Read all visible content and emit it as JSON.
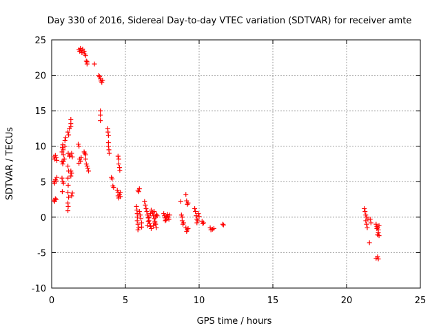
{
  "chart_data": {
    "type": "scatter",
    "title": "Day 330 of 2016, Sidereal Day-to-day VTEC variation (SDTVAR) for receiver amte",
    "xlabel": "GPS time / hours",
    "ylabel": "SDTVAR / TECUs",
    "xlim": [
      0,
      25
    ],
    "ylim": [
      -10,
      25
    ],
    "xticks": [
      0,
      5,
      10,
      15,
      20,
      25
    ],
    "yticks": [
      -10,
      -5,
      0,
      5,
      10,
      15,
      20,
      25
    ],
    "xtick_labels": [
      "0",
      "5",
      "10",
      "15",
      "20",
      "25"
    ],
    "ytick_labels": [
      "-10",
      "-5",
      "0",
      "5",
      "10",
      "15",
      "20",
      "25"
    ],
    "grid": true,
    "marker": "+",
    "color": "#ff0000",
    "series": [
      {
        "name": "SDTVAR",
        "points": [
          [
            0.15,
            8.5
          ],
          [
            0.2,
            8.2
          ],
          [
            0.25,
            8.7
          ],
          [
            0.3,
            8.4
          ],
          [
            0.35,
            8.0
          ],
          [
            0.15,
            5.0
          ],
          [
            0.2,
            4.8
          ],
          [
            0.25,
            5.3
          ],
          [
            0.3,
            5.1
          ],
          [
            0.35,
            5.6
          ],
          [
            0.15,
            2.4
          ],
          [
            0.2,
            2.2
          ],
          [
            0.25,
            2.6
          ],
          [
            0.3,
            2.5
          ],
          [
            0.7,
            9.2
          ],
          [
            0.72,
            9.8
          ],
          [
            0.75,
            10.2
          ],
          [
            0.78,
            9.5
          ],
          [
            0.8,
            8.8
          ],
          [
            0.7,
            7.8
          ],
          [
            0.75,
            7.5
          ],
          [
            0.8,
            7.9
          ],
          [
            0.85,
            8.2
          ],
          [
            0.7,
            5.5
          ],
          [
            0.75,
            5.0
          ],
          [
            0.8,
            4.8
          ],
          [
            0.72,
            3.6
          ],
          [
            0.9,
            10.8
          ],
          [
            0.95,
            11.2
          ],
          [
            0.9,
            10.0
          ],
          [
            1.1,
            12.0
          ],
          [
            1.15,
            11.6
          ],
          [
            1.2,
            12.5
          ],
          [
            1.12,
            9.0
          ],
          [
            1.2,
            8.6
          ],
          [
            1.25,
            8.8
          ],
          [
            1.1,
            7.2
          ],
          [
            1.15,
            6.5
          ],
          [
            1.1,
            5.5
          ],
          [
            1.12,
            4.5
          ],
          [
            1.1,
            3.5
          ],
          [
            1.15,
            2.8
          ],
          [
            1.1,
            2.0
          ],
          [
            1.12,
            1.5
          ],
          [
            1.1,
            0.9
          ],
          [
            1.3,
            13.8
          ],
          [
            1.3,
            13.2
          ],
          [
            1.3,
            12.8
          ],
          [
            1.35,
            9.0
          ],
          [
            1.4,
            8.5
          ],
          [
            1.3,
            6.5
          ],
          [
            1.35,
            6.2
          ],
          [
            1.3,
            5.8
          ],
          [
            1.4,
            3.4
          ],
          [
            1.35,
            3.0
          ],
          [
            1.85,
            23.6
          ],
          [
            1.9,
            23.4
          ],
          [
            1.95,
            23.8
          ],
          [
            2.0,
            23.5
          ],
          [
            2.05,
            23.2
          ],
          [
            2.1,
            23.7
          ],
          [
            2.2,
            23.4
          ],
          [
            2.25,
            23.0
          ],
          [
            2.3,
            22.8
          ],
          [
            2.35,
            22.0
          ],
          [
            2.4,
            21.6
          ],
          [
            2.4,
            21.9
          ],
          [
            2.9,
            21.6
          ],
          [
            1.8,
            10.3
          ],
          [
            1.85,
            10.0
          ],
          [
            1.9,
            8.2
          ],
          [
            1.95,
            7.9
          ],
          [
            2.0,
            8.4
          ],
          [
            1.85,
            7.6
          ],
          [
            2.2,
            9.2
          ],
          [
            2.25,
            9.0
          ],
          [
            2.3,
            8.8
          ],
          [
            2.3,
            8.2
          ],
          [
            2.35,
            7.5
          ],
          [
            2.4,
            7.2
          ],
          [
            2.45,
            6.9
          ],
          [
            2.5,
            6.5
          ],
          [
            3.2,
            20.0
          ],
          [
            3.25,
            19.8
          ],
          [
            3.3,
            19.5
          ],
          [
            3.35,
            19.2
          ],
          [
            3.4,
            19.0
          ],
          [
            3.45,
            19.3
          ],
          [
            3.3,
            15.0
          ],
          [
            3.3,
            14.4
          ],
          [
            3.3,
            13.6
          ],
          [
            3.8,
            12.5
          ],
          [
            3.82,
            12.0
          ],
          [
            3.85,
            11.5
          ],
          [
            3.85,
            10.5
          ],
          [
            3.85,
            10.0
          ],
          [
            3.88,
            9.5
          ],
          [
            3.9,
            9.0
          ],
          [
            4.05,
            5.6
          ],
          [
            4.1,
            5.4
          ],
          [
            4.15,
            4.4
          ],
          [
            4.2,
            4.2
          ],
          [
            4.5,
            8.6
          ],
          [
            4.55,
            8.2
          ],
          [
            4.55,
            7.5
          ],
          [
            4.6,
            7.0
          ],
          [
            4.62,
            6.6
          ],
          [
            4.45,
            3.8
          ],
          [
            4.5,
            3.5
          ],
          [
            4.5,
            3.0
          ],
          [
            4.55,
            2.7
          ],
          [
            4.6,
            3.2
          ],
          [
            4.65,
            2.9
          ],
          [
            4.65,
            3.5
          ],
          [
            5.75,
            1.5
          ],
          [
            5.78,
            1.0
          ],
          [
            5.8,
            0.5
          ],
          [
            5.82,
            0.0
          ],
          [
            5.8,
            -0.5
          ],
          [
            5.85,
            -1.0
          ],
          [
            5.9,
            -1.5
          ],
          [
            5.85,
            -1.8
          ],
          [
            5.95,
            0.8
          ],
          [
            6.0,
            0.3
          ],
          [
            6.05,
            -0.2
          ],
          [
            6.1,
            -0.8
          ],
          [
            6.1,
            -1.4
          ],
          [
            5.85,
            3.8
          ],
          [
            5.9,
            3.6
          ],
          [
            5.95,
            4.0
          ],
          [
            6.3,
            2.2
          ],
          [
            6.35,
            1.7
          ],
          [
            6.4,
            1.2
          ],
          [
            6.45,
            0.8
          ],
          [
            6.5,
            0.3
          ],
          [
            6.55,
            -0.1
          ],
          [
            6.6,
            -0.5
          ],
          [
            6.65,
            -0.9
          ],
          [
            6.7,
            -1.3
          ],
          [
            6.75,
            -1.6
          ],
          [
            6.5,
            -1.2
          ],
          [
            6.55,
            -0.6
          ],
          [
            6.6,
            0.0
          ],
          [
            6.7,
            0.5
          ],
          [
            6.75,
            1.0
          ],
          [
            6.85,
            0.6
          ],
          [
            6.9,
            0.2
          ],
          [
            6.95,
            -0.2
          ],
          [
            7.0,
            -0.6
          ],
          [
            7.05,
            -1.0
          ],
          [
            7.1,
            -1.5
          ],
          [
            6.9,
            -1.2
          ],
          [
            7.0,
            -0.8
          ],
          [
            7.05,
            0.0
          ],
          [
            7.1,
            0.4
          ],
          [
            7.15,
            0.2
          ],
          [
            6.95,
            0.8
          ],
          [
            7.6,
            0.5
          ],
          [
            7.65,
            0.2
          ],
          [
            7.7,
            -0.1
          ],
          [
            7.75,
            -0.4
          ],
          [
            7.8,
            0.1
          ],
          [
            7.85,
            0.4
          ],
          [
            7.9,
            0.0
          ],
          [
            7.95,
            -0.3
          ],
          [
            8.0,
            0.3
          ],
          [
            7.7,
            -0.5
          ],
          [
            8.75,
            2.2
          ],
          [
            8.8,
            0.3
          ],
          [
            8.85,
            -0.5
          ],
          [
            8.9,
            -1.0
          ],
          [
            8.95,
            -0.8
          ],
          [
            8.85,
            0.0
          ],
          [
            9.1,
            3.2
          ],
          [
            9.15,
            2.3
          ],
          [
            9.2,
            1.8
          ],
          [
            9.25,
            2.0
          ],
          [
            9.1,
            -1.5
          ],
          [
            9.15,
            -2.0
          ],
          [
            9.2,
            -1.8
          ],
          [
            9.25,
            -1.6
          ],
          [
            9.7,
            1.2
          ],
          [
            9.75,
            0.8
          ],
          [
            9.8,
            0.2
          ],
          [
            9.85,
            -0.3
          ],
          [
            9.9,
            -0.5
          ],
          [
            9.95,
            0.5
          ],
          [
            10.0,
            0.1
          ],
          [
            9.85,
            -0.8
          ],
          [
            10.2,
            -0.6
          ],
          [
            10.25,
            -0.9
          ],
          [
            10.3,
            -0.8
          ],
          [
            10.75,
            -1.5
          ],
          [
            10.8,
            -1.8
          ],
          [
            10.9,
            -1.7
          ],
          [
            11.0,
            -1.6
          ],
          [
            11.6,
            -1.0
          ],
          [
            11.65,
            -1.1
          ],
          [
            21.2,
            1.2
          ],
          [
            21.25,
            0.8
          ],
          [
            21.3,
            0.3
          ],
          [
            21.35,
            0.0
          ],
          [
            21.3,
            -0.5
          ],
          [
            21.35,
            -1.0
          ],
          [
            21.4,
            -1.5
          ],
          [
            21.45,
            -0.3
          ],
          [
            21.6,
            -0.3
          ],
          [
            21.65,
            -0.8
          ],
          [
            21.55,
            -3.6
          ],
          [
            22.0,
            -1.0
          ],
          [
            22.05,
            -1.3
          ],
          [
            22.1,
            -1.5
          ],
          [
            22.15,
            -1.8
          ],
          [
            22.2,
            -1.2
          ],
          [
            22.15,
            -2.2
          ],
          [
            22.2,
            -2.6
          ],
          [
            22.1,
            -2.5
          ],
          [
            22.05,
            -1.6
          ],
          [
            22.0,
            -5.8
          ],
          [
            22.1,
            -5.6
          ],
          [
            22.15,
            -5.9
          ]
        ]
      }
    ]
  }
}
